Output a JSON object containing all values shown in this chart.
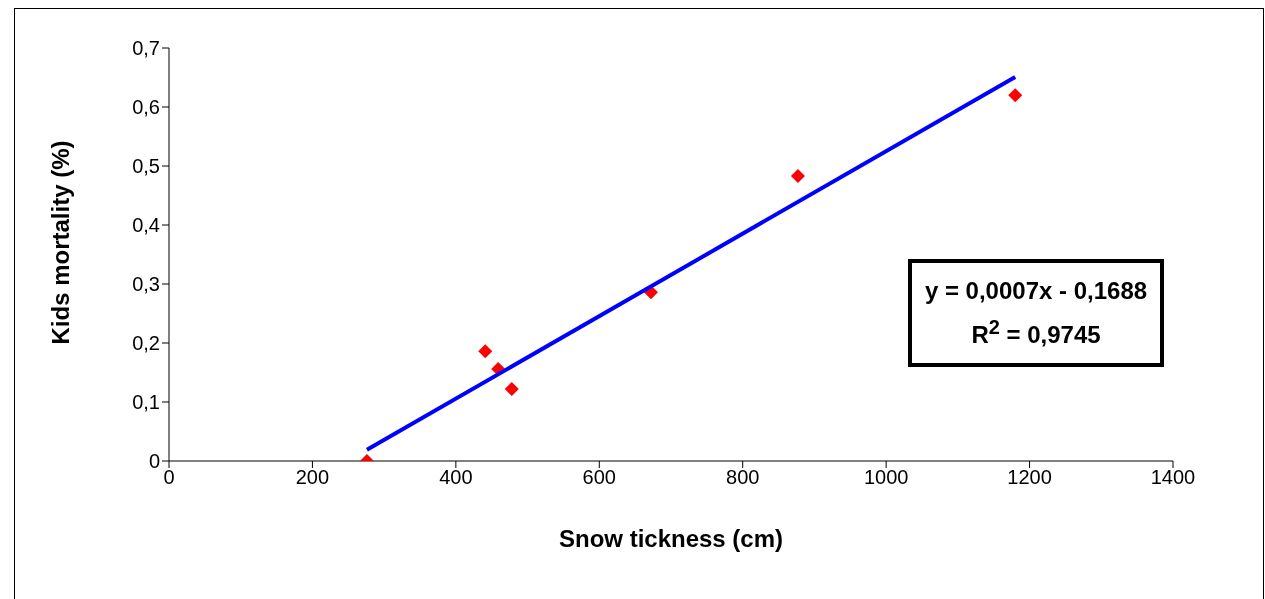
{
  "chart_data": {
    "type": "scatter",
    "xlabel": "Snow tickness (cm)",
    "ylabel": "Kids mortality (%)",
    "xlim": [
      0,
      1400
    ],
    "xticks": [
      0,
      200,
      400,
      600,
      800,
      1000,
      1200,
      1400
    ],
    "ylim": [
      0,
      0.7
    ],
    "yticks": [
      {
        "value": 0,
        "label": "0"
      },
      {
        "value": 0.1,
        "label": "0,1"
      },
      {
        "value": 0.2,
        "label": "0,2"
      },
      {
        "value": 0.3,
        "label": "0,3"
      },
      {
        "value": 0.4,
        "label": "0,4"
      },
      {
        "value": 0.5,
        "label": "0,5"
      },
      {
        "value": 0.6,
        "label": "0,6"
      },
      {
        "value": 0.7,
        "label": "0,7"
      }
    ],
    "grid": false,
    "legend": false,
    "marker": "diamond",
    "series": [
      {
        "type": "scatter",
        "color": "#ff0000",
        "x": [
          276,
          441,
          459,
          478,
          672,
          877,
          1180
        ],
        "values": [
          0,
          0.186,
          0.156,
          0.122,
          0.286,
          0.483,
          0.62
        ]
      },
      {
        "type": "line",
        "color": "#0000ff",
        "marker": "none",
        "line_style": "solid",
        "x": [
          276,
          1180
        ],
        "values": [
          0.019,
          0.651
        ]
      }
    ],
    "annotations": [
      "y = 0,0007x - 0,1688",
      "R$^{2}$ = 0,9745"
    ]
  }
}
